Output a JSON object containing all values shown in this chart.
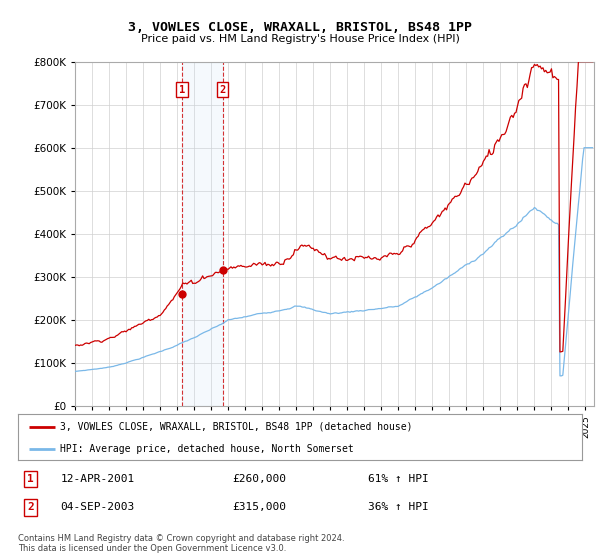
{
  "title": "3, VOWLES CLOSE, WRAXALL, BRISTOL, BS48 1PP",
  "subtitle": "Price paid vs. HM Land Registry's House Price Index (HPI)",
  "legend_line1": "3, VOWLES CLOSE, WRAXALL, BRISTOL, BS48 1PP (detached house)",
  "legend_line2": "HPI: Average price, detached house, North Somerset",
  "footer1": "Contains HM Land Registry data © Crown copyright and database right 2024.",
  "footer2": "This data is licensed under the Open Government Licence v3.0.",
  "sale1_date": "12-APR-2001",
  "sale1_price": "£260,000",
  "sale1_hpi": "61% ↑ HPI",
  "sale1_year": 2001.28,
  "sale1_value": 260000,
  "sale2_date": "04-SEP-2003",
  "sale2_price": "£315,000",
  "sale2_hpi": "36% ↑ HPI",
  "sale2_year": 2003.67,
  "sale2_value": 315000,
  "hpi_color": "#7ab8e8",
  "price_color": "#cc0000",
  "ylim_min": 0,
  "ylim_max": 800000,
  "background_color": "#ffffff"
}
